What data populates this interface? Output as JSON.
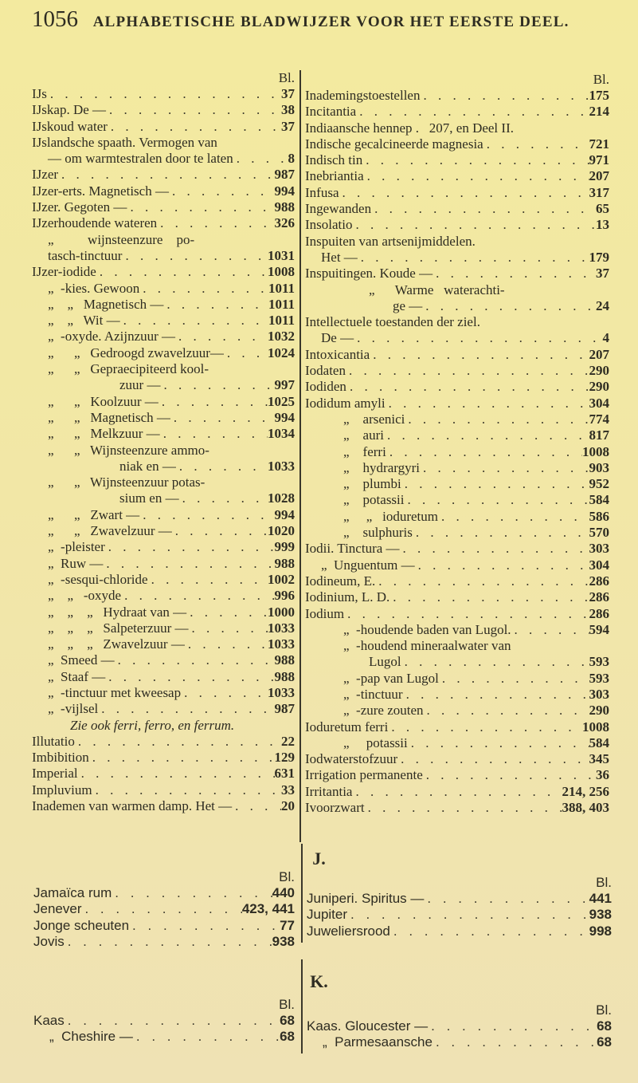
{
  "header": {
    "page_number": "1056",
    "title": "ALPHABETISCHE BLADWIJZER VOOR HET EERSTE DEEL."
  },
  "bl_label": "Bl.",
  "sections": {
    "I": {
      "left": [
        {
          "t": "IJs",
          "p": "37",
          "lv": 0
        },
        {
          "t": "IJskap. De —",
          "p": "38",
          "lv": 0
        },
        {
          "t": "IJskoud water",
          "p": "37",
          "lv": 0
        },
        {
          "t": "IJslandsche spaath. Vermogen van",
          "p": "",
          "lv": 0
        },
        {
          "t": "— om warmtestralen door te laten",
          "p": "8",
          "lv": 1
        },
        {
          "t": "IJzer",
          "p": "987",
          "lv": 0
        },
        {
          "t": "IJzer-erts. Magnetisch —",
          "p": "994",
          "lv": 0
        },
        {
          "t": "IJzer. Gegoten —",
          "p": "988",
          "lv": 0
        },
        {
          "t": "IJzerhoudende wateren",
          "p": "326",
          "lv": 0
        },
        {
          "t": "„          wijnsteenzure    po-",
          "p": "",
          "lv": 1
        },
        {
          "t": "tasch-tinctuur",
          "p": "1031",
          "lv": 1
        },
        {
          "t": "IJzer-iodide",
          "p": "1008",
          "lv": 0
        },
        {
          "t": "„  -kies. Gewoon",
          "p": "1011",
          "lv": 1
        },
        {
          "t": "„    „   Magnetisch —",
          "p": "1011",
          "lv": 1
        },
        {
          "t": "„    „   Wit —",
          "p": "1011",
          "lv": 1
        },
        {
          "t": "„  -oxyde. Azijnzuur —",
          "p": "1032",
          "lv": 1
        },
        {
          "t": "„      „   Gedroogd zwavelzuur—",
          "p": "1024",
          "lv": 1
        },
        {
          "t": "„      „   Gepraecipiteerd kool-",
          "p": "",
          "lv": 1
        },
        {
          "t": "zuur —",
          "p": "997",
          "lv": 4
        },
        {
          "t": "„      „   Koolzuur —",
          "p": "1025",
          "lv": 1
        },
        {
          "t": "„      „   Magnetisch —",
          "p": "994",
          "lv": 1
        },
        {
          "t": "„      „   Melkzuur —",
          "p": "1034",
          "lv": 1
        },
        {
          "t": "„      „   Wijnsteenzure ammo-",
          "p": "",
          "lv": 1
        },
        {
          "t": "niak en —",
          "p": "1033",
          "lv": 4
        },
        {
          "t": "„      „   Wijnsteenzuur potas-",
          "p": "",
          "lv": 1
        },
        {
          "t": "sium en —",
          "p": "1028",
          "lv": 4
        },
        {
          "t": "„      „   Zwart —",
          "p": "994",
          "lv": 1
        },
        {
          "t": "„      „   Zwavelzuur —",
          "p": "1020",
          "lv": 1
        },
        {
          "t": "„  -pleister",
          "p": "999",
          "lv": 1
        },
        {
          "t": "„  Ruw —",
          "p": "988",
          "lv": 1
        },
        {
          "t": "„  -sesqui-chloride",
          "p": "1002",
          "lv": 1
        },
        {
          "t": "„    „   -oxyde",
          "p": "996",
          "lv": 1
        },
        {
          "t": "„    „    „   Hydraat van —",
          "p": "1000",
          "lv": 1
        },
        {
          "t": "„    „    „   Salpeterzuur —",
          "p": "1033",
          "lv": 1
        },
        {
          "t": "„    „    „   Zwavelzuur —",
          "p": "1033",
          "lv": 1
        },
        {
          "t": "„  Smeed —",
          "p": "988",
          "lv": 1
        },
        {
          "t": "„  Staaf —",
          "p": "988",
          "lv": 1
        },
        {
          "t": "„  -tinctuur met kweesap",
          "p": "1033",
          "lv": 1
        },
        {
          "t": "„  -vijlsel",
          "p": "987",
          "lv": 1
        },
        {
          "t": "Zie ook ferri, ferro, en ferrum.",
          "p": "",
          "lv": 2,
          "italic": true
        },
        {
          "t": "Illutatio",
          "p": "22",
          "lv": 0
        },
        {
          "t": "Imbibition",
          "p": "129",
          "lv": 0
        },
        {
          "t": "Imperial",
          "p": "631",
          "lv": 0
        },
        {
          "t": "Impluvium",
          "p": "33",
          "lv": 0
        },
        {
          "t": "Inademen van warmen damp. Het —",
          "p": "20",
          "lv": 0
        }
      ],
      "right": [
        {
          "t": "Inademingstoestellen",
          "p": "175",
          "lv": 0
        },
        {
          "t": "Incitantia",
          "p": "214",
          "lv": 0
        },
        {
          "t": "Indiaansche hennep .   207, en Deel II.",
          "p": "",
          "lv": 0
        },
        {
          "t": "Indische gecalcineerde magnesia",
          "p": "721",
          "lv": 0
        },
        {
          "t": "Indisch tin",
          "p": "971",
          "lv": 0
        },
        {
          "t": "Inebriantia",
          "p": "207",
          "lv": 0
        },
        {
          "t": "Infusa",
          "p": "317",
          "lv": 0
        },
        {
          "t": "Ingewanden",
          "p": "65",
          "lv": 0
        },
        {
          "t": "Insolatio",
          "p": "13",
          "lv": 0
        },
        {
          "t": "Inspuiten van artsenijmiddelen.",
          "p": "",
          "lv": 0
        },
        {
          "t": "Het —",
          "p": "179",
          "lv": 1
        },
        {
          "t": "Inspuitingen. Koude —",
          "p": "37",
          "lv": 0
        },
        {
          "t": "„      Warme   waterachti-",
          "p": "",
          "lv": 3
        },
        {
          "t": "ge —",
          "p": "24",
          "lv": 4
        },
        {
          "t": "Intellectuele toestanden der ziel.",
          "p": "",
          "lv": 0
        },
        {
          "t": "De —",
          "p": "4",
          "lv": 1
        },
        {
          "t": "Intoxicantia",
          "p": "207",
          "lv": 0
        },
        {
          "t": "Iodaten",
          "p": "290",
          "lv": 0
        },
        {
          "t": "Iodiden",
          "p": "290",
          "lv": 0
        },
        {
          "t": "Iodidum amyli",
          "p": "304",
          "lv": 0
        },
        {
          "t": "„    arsenici",
          "p": "774",
          "lv": 2
        },
        {
          "t": "„    auri",
          "p": "817",
          "lv": 2
        },
        {
          "t": "„    ferri",
          "p": "1008",
          "lv": 2
        },
        {
          "t": "„    hydrargyri",
          "p": "903",
          "lv": 2
        },
        {
          "t": "„    plumbi",
          "p": "952",
          "lv": 2
        },
        {
          "t": "„    potassii",
          "p": "584",
          "lv": 2
        },
        {
          "t": "„     „   ioduretum",
          "p": "586",
          "lv": 2
        },
        {
          "t": "„    sulphuris",
          "p": "570",
          "lv": 2
        },
        {
          "t": "Iodii. Tinctura —",
          "p": "303",
          "lv": 0
        },
        {
          "t": "„  Unguentum —",
          "p": "304",
          "lv": 1
        },
        {
          "t": "Iodineum, E.",
          "p": "286",
          "lv": 0
        },
        {
          "t": "Iodinium, L. D.",
          "p": "286",
          "lv": 0
        },
        {
          "t": "Iodium",
          "p": "286",
          "lv": 0
        },
        {
          "t": "„  -houdende baden van Lugol.",
          "p": "594",
          "lv": 2
        },
        {
          "t": "„  -houdend mineraalwater van",
          "p": "",
          "lv": 2
        },
        {
          "t": "Lugol",
          "p": "593",
          "lv": 3
        },
        {
          "t": "„  -pap van Lugol",
          "p": "593",
          "lv": 2
        },
        {
          "t": "„  -tinctuur",
          "p": "303",
          "lv": 2
        },
        {
          "t": "„  -zure zouten",
          "p": "290",
          "lv": 2
        },
        {
          "t": "Ioduretum ferri",
          "p": "1008",
          "lv": 0
        },
        {
          "t": "„     potassii",
          "p": "584",
          "lv": 2
        },
        {
          "t": "Iodwaterstofzuur",
          "p": "345",
          "lv": 0
        },
        {
          "t": "Irrigation permanente",
          "p": "36",
          "lv": 0
        },
        {
          "t": "Irritantia",
          "p": "214, 256",
          "lv": 0
        },
        {
          "t": "Ivoorzwart",
          "p": "388, 403",
          "lv": 0
        }
      ]
    },
    "J": {
      "letter": "J.",
      "left": [
        {
          "t": "Jamaïca rum",
          "p": "440",
          "lv": 0
        },
        {
          "t": "Jenever",
          "p": "423, 441",
          "lv": 0
        },
        {
          "t": "Jonge scheuten",
          "p": "77",
          "lv": 0
        },
        {
          "t": "Jovis",
          "p": "938",
          "lv": 0
        }
      ],
      "right": [
        {
          "t": "Juniperi. Spiritus —",
          "p": "441",
          "lv": 0
        },
        {
          "t": "Jupiter",
          "p": "938",
          "lv": 0
        },
        {
          "t": "Juweliersrood",
          "p": "998",
          "lv": 0
        }
      ]
    },
    "K": {
      "letter": "K.",
      "left": [
        {
          "t": "Kaas",
          "p": "68",
          "lv": 0
        },
        {
          "t": "„  Cheshire —",
          "p": "68",
          "lv": 1
        }
      ],
      "right": [
        {
          "t": "Kaas. Gloucester —",
          "p": "68",
          "lv": 0
        },
        {
          "t": "„  Parmesaansche",
          "p": "68",
          "lv": 1
        }
      ]
    }
  }
}
